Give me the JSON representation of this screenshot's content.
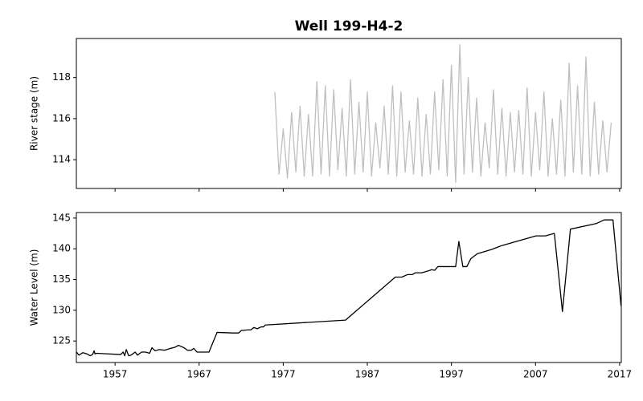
{
  "chart_data": [
    {
      "type": "line",
      "title": "Well 199-H4-2",
      "y_label": "River stage (m)",
      "xlim": [
        1952.4,
        2017.2
      ],
      "xticks": [
        1957,
        1967,
        1977,
        1987,
        1997,
        2007,
        2017
      ],
      "x_tick_labels": false,
      "ylim": [
        112.6,
        119.9
      ],
      "yticks": [
        114,
        116,
        118
      ],
      "series": [
        {
          "color": "#bfbfbf",
          "x": [
            1976,
            1976.5,
            1977,
            1977.5,
            1978,
            1978.5,
            1979,
            1979.5,
            1980,
            1980.5,
            1981,
            1981.5,
            1982,
            1982.5,
            1983,
            1983.5,
            1984,
            1984.5,
            1985,
            1985.5,
            1986,
            1986.5,
            1987,
            1987.5,
            1988,
            1988.5,
            1989,
            1989.5,
            1990,
            1990.5,
            1991,
            1991.5,
            1992,
            1992.5,
            1993,
            1993.5,
            1994,
            1994.5,
            1995,
            1995.5,
            1996,
            1996.5,
            1997,
            1997.5,
            1998,
            1998.5,
            1999,
            1999.5,
            2000,
            2000.5,
            2001,
            2001.5,
            2002,
            2002.5,
            2003,
            2003.5,
            2004,
            2004.5,
            2005,
            2005.5,
            2006,
            2006.5,
            2007,
            2007.5,
            2008,
            2008.5,
            2009,
            2009.5,
            2010,
            2010.5,
            2011,
            2011.5,
            2012,
            2012.5,
            2013,
            2013.5,
            2014,
            2014.5,
            2015,
            2015.5,
            2016
          ],
          "values": [
            117.3,
            113.3,
            115.5,
            113.1,
            116.3,
            113.4,
            116.6,
            113.2,
            116.2,
            113.2,
            117.8,
            113.3,
            117.6,
            113.2,
            117.4,
            113.5,
            116.5,
            113.2,
            117.9,
            113.3,
            116.8,
            113.4,
            117.3,
            113.2,
            115.8,
            113.6,
            116.6,
            113.3,
            117.6,
            113.2,
            117.3,
            113.4,
            115.9,
            113.3,
            117.0,
            113.2,
            116.2,
            113.3,
            117.3,
            113.5,
            117.9,
            113.2,
            118.6,
            112.9,
            119.6,
            113.3,
            118.0,
            113.4,
            117.0,
            113.2,
            115.8,
            113.6,
            117.4,
            113.3,
            116.5,
            113.2,
            116.3,
            113.4,
            116.4,
            113.3,
            117.5,
            113.2,
            116.3,
            113.5,
            117.3,
            113.2,
            116.0,
            113.3,
            116.9,
            113.2,
            118.7,
            113.4,
            117.6,
            113.3,
            119.0,
            113.2,
            116.8,
            113.3,
            115.9,
            113.4,
            115.8
          ]
        }
      ]
    },
    {
      "type": "line",
      "y_label": "Water Level (m)",
      "xlim": [
        1952.4,
        2017.2
      ],
      "xticks": [
        1957,
        1967,
        1977,
        1987,
        1997,
        2007,
        2017
      ],
      "x_tick_labels": true,
      "ylim": [
        121.5,
        145.9
      ],
      "yticks": [
        125,
        130,
        135,
        140,
        145
      ],
      "series": [
        {
          "color": "#000000",
          "x": [
            1952.42,
            1952.7,
            1953.18,
            1953.66,
            1954.04,
            1954.33,
            1954.52,
            1954.61,
            1954.8,
            1957.67,
            1957.96,
            1958.15,
            1958.34,
            1958.62,
            1958.91,
            1959.39,
            1959.67,
            1960.15,
            1960.63,
            1961.11,
            1961.39,
            1961.78,
            1962.25,
            1962.92,
            1963.59,
            1964.16,
            1964.55,
            1965.21,
            1965.6,
            1966.07,
            1966.36,
            1966.74,
            1968.17,
            1969.13,
            1971.04,
            1971.71,
            1972.0,
            1972.76,
            1973.14,
            1973.52,
            1973.91,
            1974.38,
            1974.67,
            1974.86,
            1984.41,
            1990.33,
            1991.1,
            1991.77,
            1992.34,
            1992.72,
            1993.48,
            1994.25,
            1994.63,
            1995.01,
            1995.39,
            1997.5,
            1997.88,
            1998.36,
            1998.83,
            1999.31,
            2000.08,
            2001.79,
            2002.94,
            2007.05,
            2008.19,
            2009.24,
            2010.2,
            2011.15,
            2014.21,
            2015.16,
            2016.21,
            2017.17
          ],
          "values": [
            123.2,
            122.7,
            123.1,
            122.9,
            122.6,
            122.8,
            123.4,
            122.9,
            123.0,
            122.8,
            123.2,
            122.6,
            123.6,
            122.6,
            122.7,
            123.2,
            122.7,
            123.2,
            123.2,
            123.0,
            123.9,
            123.4,
            123.6,
            123.5,
            123.8,
            124.0,
            124.3,
            123.9,
            123.5,
            123.5,
            123.8,
            123.2,
            123.2,
            126.4,
            126.3,
            126.3,
            126.7,
            126.8,
            126.8,
            127.2,
            127.0,
            127.3,
            127.3,
            127.6,
            128.4,
            135.4,
            135.4,
            135.8,
            135.8,
            136.1,
            136.1,
            136.4,
            136.6,
            136.5,
            137.1,
            137.1,
            141.2,
            137.1,
            137.1,
            138.4,
            139.2,
            139.9,
            140.5,
            142.1,
            142.1,
            142.5,
            129.8,
            143.2,
            144.1,
            144.7,
            144.7,
            130.7
          ]
        }
      ]
    }
  ]
}
